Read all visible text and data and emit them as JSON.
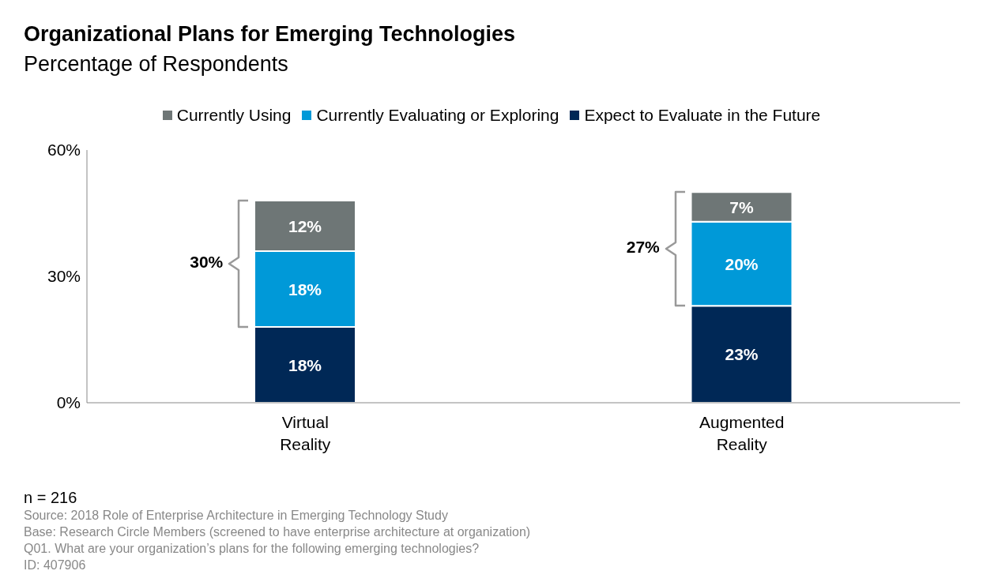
{
  "chart_data": {
    "type": "bar",
    "title": "Organizational Plans for Emerging Technologies",
    "subtitle": "Percentage of Respondents",
    "categories": [
      "Virtual Reality",
      "Augmented Reality"
    ],
    "stacked": true,
    "series": [
      {
        "name": "Expect to Evaluate in the Future",
        "color": "#002856",
        "values": [
          18,
          23
        ],
        "value_labels": [
          "18%",
          "23%"
        ]
      },
      {
        "name": "Currently Evaluating or Exploring",
        "color": "#0099d8",
        "values": [
          18,
          20
        ],
        "value_labels": [
          "18%",
          "20%"
        ]
      },
      {
        "name": "Currently Using",
        "color": "#6e7676",
        "values": [
          12,
          7
        ],
        "value_labels": [
          "12%",
          "7%"
        ]
      }
    ],
    "ylim": [
      0,
      60
    ],
    "yticks": [
      {
        "value": 0,
        "label": "0%"
      },
      {
        "value": 30,
        "label": "30%"
      },
      {
        "value": 60,
        "label": "60%"
      }
    ],
    "grid": false,
    "legend": "top",
    "annotations": [
      "30%",
      "27%",
      "n = 216",
      "Source: 2018 Role of Enterprise Architecture in Emerging Technology Study",
      "Base: Research Circle Members (screened to have enterprise architecture at organization)",
      "Q01. What are your organization’s plans for the following emerging technologies?",
      "ID: 407906"
    ]
  }
}
